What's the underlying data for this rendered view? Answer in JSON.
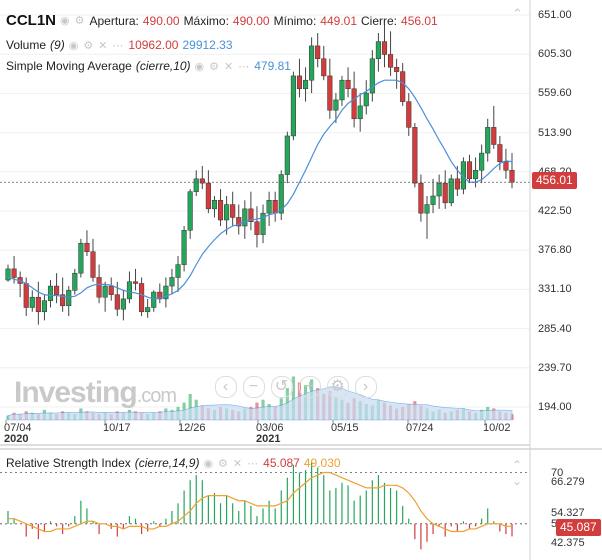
{
  "header": {
    "symbol": "CCL1N",
    "open_label": "Apertura:",
    "open": "490.00",
    "high_label": "Máximo:",
    "high": "490.00",
    "low_label": "Mínimo:",
    "low": "449.01",
    "close_label": "Cierre:",
    "close": "456.01",
    "volume_label": "Volume",
    "volume_param": "(9)",
    "volume_value": "10962.00",
    "volume_avg": "29912.33",
    "sma_label": "Simple Moving Average",
    "sma_param": "(cierre,10)",
    "sma_value": "479.81"
  },
  "rsi_header": {
    "label": "Relative Strength Index",
    "param": "(cierre,14,9)",
    "value": "45.087",
    "signal": "49.030"
  },
  "logo": {
    "brand": "Investing",
    "suffix": ".com"
  },
  "colors": {
    "up": "#26a65b",
    "down": "#d23c3c",
    "sma": "#4a90d9",
    "rsi_signal": "#f0a030",
    "volume_area": "#c7dcf3"
  },
  "price_axis": [
    "651.00",
    "605.30",
    "559.60",
    "513.90",
    "468.20",
    "422.50",
    "376.80",
    "331.10",
    "285.40",
    "239.70",
    "194.00"
  ],
  "last_price_tag": "456.01",
  "x_axis": [
    {
      "label": "07/04",
      "sub": "2020"
    },
    {
      "label": "10/17",
      "sub": ""
    },
    {
      "label": "12/26",
      "sub": ""
    },
    {
      "label": "03/06",
      "sub": "2021"
    },
    {
      "label": "05/15",
      "sub": ""
    },
    {
      "label": "07/24",
      "sub": ""
    },
    {
      "label": "10/02",
      "sub": ""
    }
  ],
  "rsi_axis": [
    "70",
    "66.279",
    "54.327",
    "50",
    "42.375"
  ],
  "rsi_last_tag": "45.087",
  "chart_data": {
    "type": "candlestick",
    "ylim": [
      194,
      651
    ],
    "candles": [
      [
        342,
        360,
        340,
        355
      ],
      [
        355,
        370,
        338,
        345
      ],
      [
        345,
        352,
        322,
        338
      ],
      [
        338,
        345,
        300,
        310
      ],
      [
        310,
        330,
        305,
        322
      ],
      [
        322,
        340,
        290,
        305
      ],
      [
        305,
        325,
        295,
        318
      ],
      [
        318,
        342,
        310,
        335
      ],
      [
        335,
        350,
        315,
        325
      ],
      [
        325,
        345,
        305,
        312
      ],
      [
        312,
        335,
        300,
        330
      ],
      [
        330,
        355,
        325,
        350
      ],
      [
        350,
        390,
        345,
        385
      ],
      [
        385,
        400,
        370,
        375
      ],
      [
        375,
        390,
        340,
        345
      ],
      [
        345,
        360,
        315,
        322
      ],
      [
        322,
        340,
        305,
        335
      ],
      [
        335,
        345,
        318,
        325
      ],
      [
        325,
        340,
        300,
        308
      ],
      [
        308,
        330,
        295,
        320
      ],
      [
        320,
        352,
        315,
        340
      ],
      [
        340,
        355,
        330,
        338
      ],
      [
        338,
        345,
        300,
        305
      ],
      [
        305,
        320,
        298,
        310
      ],
      [
        310,
        330,
        305,
        328
      ],
      [
        328,
        338,
        315,
        320
      ],
      [
        320,
        345,
        310,
        335
      ],
      [
        335,
        355,
        325,
        345
      ],
      [
        345,
        370,
        328,
        360
      ],
      [
        360,
        405,
        352,
        400
      ],
      [
        400,
        448,
        390,
        445
      ],
      [
        445,
        470,
        440,
        460
      ],
      [
        460,
        475,
        448,
        455
      ],
      [
        455,
        470,
        420,
        425
      ],
      [
        425,
        440,
        415,
        435
      ],
      [
        435,
        448,
        405,
        412
      ],
      [
        412,
        440,
        395,
        430
      ],
      [
        430,
        445,
        405,
        415
      ],
      [
        415,
        430,
        395,
        405
      ],
      [
        405,
        435,
        390,
        425
      ],
      [
        425,
        445,
        400,
        410
      ],
      [
        410,
        428,
        380,
        395
      ],
      [
        395,
        430,
        385,
        420
      ],
      [
        420,
        445,
        405,
        435
      ],
      [
        435,
        445,
        410,
        420
      ],
      [
        420,
        470,
        412,
        465
      ],
      [
        465,
        515,
        455,
        510
      ],
      [
        510,
        585,
        505,
        580
      ],
      [
        580,
        600,
        555,
        565
      ],
      [
        565,
        590,
        550,
        575
      ],
      [
        575,
        625,
        560,
        615
      ],
      [
        615,
        630,
        590,
        600
      ],
      [
        600,
        615,
        575,
        580
      ],
      [
        580,
        600,
        530,
        540
      ],
      [
        540,
        560,
        525,
        552
      ],
      [
        552,
        580,
        545,
        575
      ],
      [
        575,
        590,
        555,
        565
      ],
      [
        565,
        585,
        520,
        530
      ],
      [
        530,
        560,
        515,
        545
      ],
      [
        545,
        575,
        535,
        560
      ],
      [
        560,
        610,
        550,
        600
      ],
      [
        600,
        630,
        585,
        620
      ],
      [
        620,
        640,
        590,
        605
      ],
      [
        605,
        632,
        580,
        590
      ],
      [
        590,
        600,
        565,
        585
      ],
      [
        585,
        595,
        545,
        550
      ],
      [
        550,
        560,
        510,
        520
      ],
      [
        520,
        525,
        450,
        455
      ],
      [
        455,
        465,
        410,
        420
      ],
      [
        420,
        440,
        390,
        430
      ],
      [
        430,
        460,
        420,
        440
      ],
      [
        440,
        465,
        425,
        455
      ],
      [
        455,
        470,
        425,
        432
      ],
      [
        432,
        465,
        428,
        460
      ],
      [
        460,
        475,
        440,
        448
      ],
      [
        448,
        485,
        442,
        480
      ],
      [
        480,
        488,
        455,
        460
      ],
      [
        460,
        485,
        450,
        470
      ],
      [
        470,
        500,
        455,
        490
      ],
      [
        490,
        530,
        480,
        520
      ],
      [
        520,
        545,
        495,
        500
      ],
      [
        500,
        510,
        470,
        480
      ],
      [
        480,
        495,
        460,
        470
      ],
      [
        470,
        490,
        449,
        456
      ]
    ],
    "sma": [
      345,
      343,
      341,
      338,
      333,
      328,
      325,
      324,
      324,
      323,
      322,
      323,
      327,
      333,
      336,
      337,
      337,
      336,
      333,
      330,
      328,
      327,
      325,
      322,
      320,
      321,
      323,
      326,
      330,
      337,
      347,
      360,
      372,
      381,
      389,
      396,
      401,
      405,
      407,
      410,
      412,
      413,
      415,
      418,
      420,
      424,
      431,
      442,
      456,
      470,
      485,
      500,
      512,
      521,
      529,
      540,
      548,
      553,
      558,
      562,
      567,
      572,
      575,
      575,
      575,
      572,
      565,
      555,
      543,
      530,
      518,
      505,
      493,
      480,
      470,
      462,
      456,
      456,
      459,
      465,
      472,
      478,
      481,
      480
    ],
    "volume": [
      3,
      5,
      4,
      6,
      5,
      4,
      7,
      5,
      4,
      6,
      5,
      4,
      8,
      6,
      5,
      4,
      5,
      4,
      6,
      5,
      7,
      6,
      5,
      4,
      5,
      6,
      8,
      7,
      9,
      12,
      18,
      14,
      10,
      8,
      7,
      9,
      8,
      7,
      6,
      8,
      9,
      12,
      14,
      11,
      9,
      15,
      22,
      30,
      26,
      24,
      28,
      22,
      18,
      20,
      16,
      14,
      12,
      15,
      13,
      11,
      10,
      14,
      12,
      10,
      8,
      9,
      11,
      13,
      10,
      8,
      6,
      7,
      5,
      6,
      7,
      8,
      6,
      5,
      7,
      9,
      8,
      6,
      5,
      4
    ],
    "rsi": [
      55,
      52,
      50,
      45,
      48,
      44,
      47,
      51,
      49,
      46,
      49,
      53,
      59,
      56,
      51,
      46,
      50,
      48,
      45,
      48,
      53,
      52,
      46,
      47,
      51,
      49,
      52,
      55,
      58,
      63,
      67,
      69,
      67,
      61,
      62,
      58,
      61,
      58,
      55,
      59,
      57,
      53,
      56,
      59,
      56,
      63,
      68,
      73,
      70,
      71,
      74,
      72,
      69,
      63,
      64,
      66,
      65,
      59,
      61,
      63,
      67,
      69,
      66,
      64,
      63,
      57,
      52,
      44,
      40,
      43,
      46,
      49,
      45,
      49,
      47,
      51,
      48,
      49,
      52,
      56,
      51,
      47,
      46,
      45.087
    ],
    "rsi_signal": [
      52,
      52,
      51,
      50,
      49,
      48,
      47,
      47,
      48,
      48,
      48,
      49,
      50,
      51,
      51,
      50,
      50,
      49,
      49,
      48,
      49,
      49,
      49,
      48,
      48,
      49,
      49,
      50,
      51,
      53,
      55,
      58,
      60,
      61,
      61,
      61,
      61,
      60,
      59,
      59,
      58,
      57,
      57,
      57,
      57,
      58,
      59,
      62,
      64,
      66,
      68,
      69,
      70,
      70,
      69,
      68,
      67,
      66,
      65,
      64,
      64,
      64,
      65,
      65,
      65,
      64,
      62,
      59,
      55,
      52,
      50,
      49,
      48,
      47,
      47,
      47,
      48,
      48,
      49,
      50,
      50,
      50,
      49,
      49.03
    ],
    "rsi_ylim": [
      39,
      78
    ],
    "rsi_levels": [
      70,
      50
    ]
  }
}
